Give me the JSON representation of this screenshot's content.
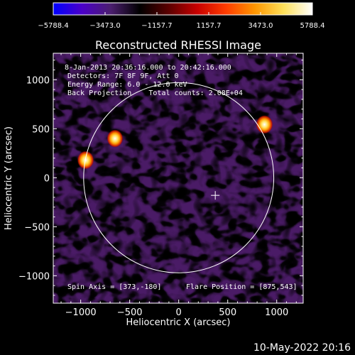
{
  "colorbar": {
    "ticks": [
      "-5788.4",
      "-3473.0",
      "-1157.7",
      "1157.7",
      "3473.0",
      "5788.4"
    ],
    "range": [
      -5788.4,
      5788.4
    ],
    "colors": [
      "#0000ff",
      "#4b00c8",
      "#4b1e6e",
      "#000000",
      "#5a0000",
      "#c80000",
      "#ff3c00",
      "#ff9600",
      "#ffe15a",
      "#ffffff"
    ]
  },
  "chart_data": {
    "type": "heatmap",
    "title": "Reconstructed RHESSI Image",
    "xlabel": "Heliocentric X (arcsec)",
    "ylabel": "Heliocentric Y (arcsec)",
    "xlim": [
      -1280,
      1270
    ],
    "ylim": [
      -1280,
      1270
    ],
    "x_ticks": [
      {
        "value": -1000,
        "label": "−1000"
      },
      {
        "value": -500,
        "label": "−500"
      },
      {
        "value": 0,
        "label": "0"
      },
      {
        "value": 500,
        "label": "500"
      },
      {
        "value": 1000,
        "label": "1000"
      }
    ],
    "y_ticks": [
      {
        "value": 1000,
        "label": "1000"
      },
      {
        "value": 500,
        "label": "500"
      },
      {
        "value": 0,
        "label": "0"
      },
      {
        "value": -500,
        "label": "−500"
      },
      {
        "value": -1000,
        "label": "−1000"
      }
    ],
    "annotations": [
      "8-Jan-2013 20:36:16.000 to 20:42:16.000",
      "Detectors: 7F 8F 9F, Att 0",
      "Energy Range: 6.0 - 12.0 keV",
      "Back Projection    Total counts: 2.08E+04"
    ],
    "spin_axis": "Spin Axis = [373,-180]",
    "flare_position": "Flare Position = [875,543]",
    "solar_limb": {
      "center": [
        0,
        0
      ],
      "radius": 970
    },
    "spin_axis_point": [
      373,
      -180
    ],
    "bright_sources": [
      {
        "x": 875,
        "y": 543,
        "value": 5788
      },
      {
        "x": -950,
        "y": 180,
        "value": 5600
      },
      {
        "x": -650,
        "y": 400,
        "value": 5200
      }
    ]
  },
  "footer": {
    "timestamp": "10-May-2022 20:16"
  }
}
